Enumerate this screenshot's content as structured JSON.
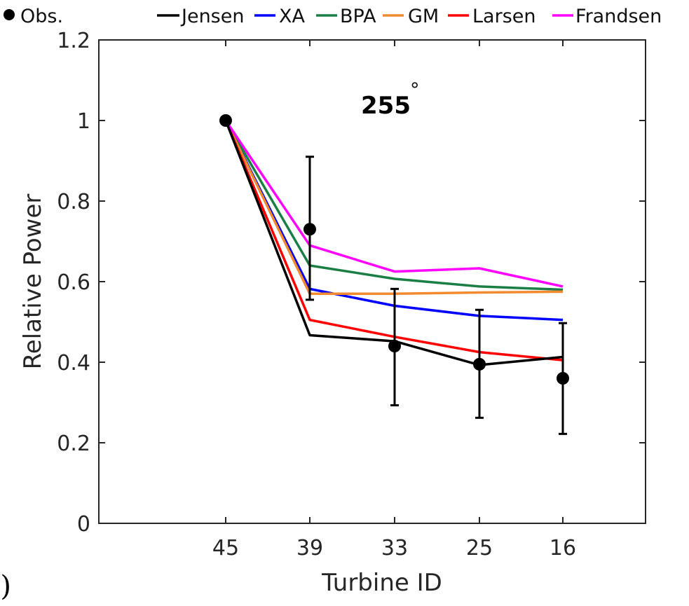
{
  "chart_data": {
    "type": "line",
    "title": "",
    "annotation": "255",
    "annotation_degree": "°",
    "panel_label": "c)",
    "xlabel": "Turbine ID",
    "ylabel": "Relative Power",
    "categories": [
      "45",
      "39",
      "33",
      "25",
      "16"
    ],
    "ylim": [
      0,
      1.2
    ],
    "yticks": [
      "0",
      "0.2",
      "0.4",
      "0.6",
      "0.8",
      "1",
      "1.2"
    ],
    "grid": false,
    "legend_position": "top",
    "observations": {
      "name": "Obs.",
      "values": [
        1.0,
        0.73,
        0.44,
        0.395,
        0.36
      ],
      "error_low": [
        1.0,
        0.555,
        0.293,
        0.262,
        0.222
      ],
      "error_high": [
        1.0,
        0.91,
        0.582,
        0.53,
        0.497
      ],
      "color": "#000000"
    },
    "series": [
      {
        "name": "Jensen",
        "color": "#000000",
        "values": [
          1.0,
          0.467,
          0.452,
          0.393,
          0.413
        ]
      },
      {
        "name": "XA",
        "color": "#0000ff",
        "values": [
          1.0,
          0.582,
          0.54,
          0.515,
          0.505
        ]
      },
      {
        "name": "BPA",
        "color": "#1b7f45",
        "values": [
          1.0,
          0.64,
          0.607,
          0.588,
          0.58
        ]
      },
      {
        "name": "GM",
        "color": "#f28a30",
        "values": [
          1.0,
          0.57,
          0.57,
          0.573,
          0.575
        ]
      },
      {
        "name": "Larsen",
        "color": "#ff0000",
        "values": [
          1.0,
          0.505,
          0.463,
          0.425,
          0.405
        ]
      },
      {
        "name": "Frandsen",
        "color": "#ff00ff",
        "values": [
          1.0,
          0.69,
          0.625,
          0.633,
          0.588
        ]
      }
    ]
  }
}
